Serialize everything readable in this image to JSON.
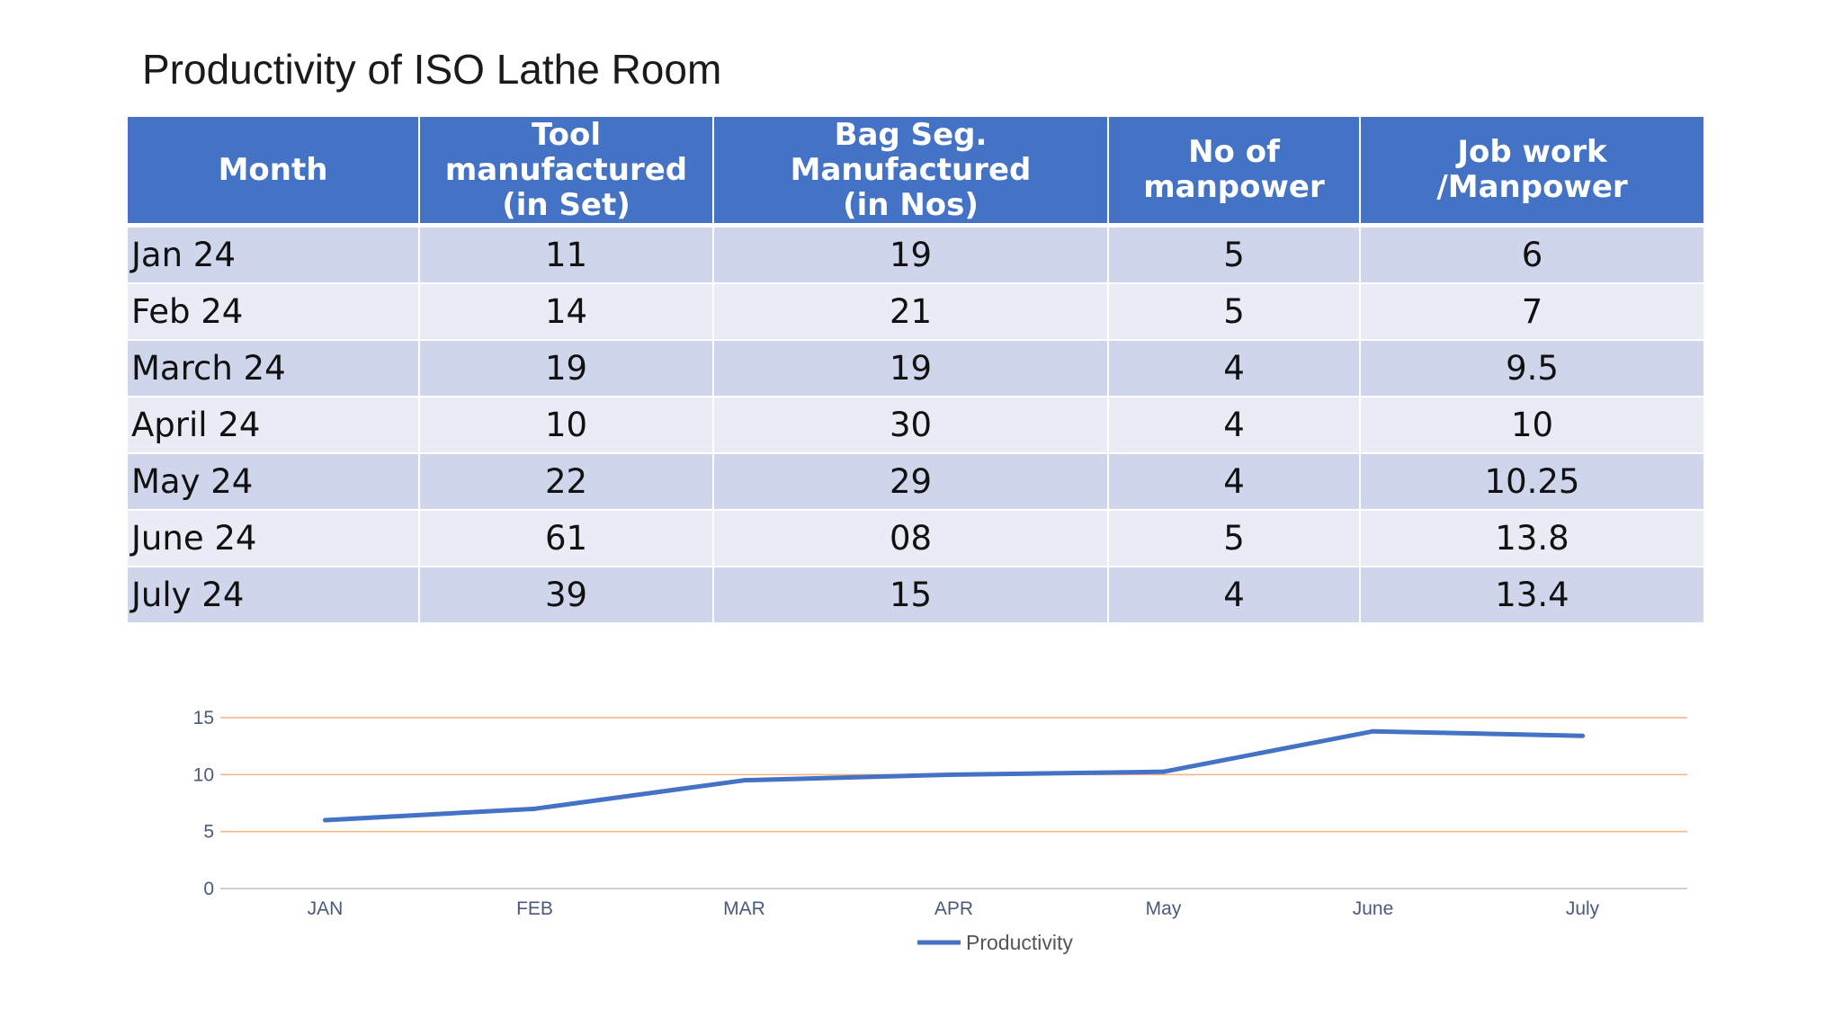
{
  "slide": {
    "title": "Productivity of ISO Lathe Room"
  },
  "table": {
    "headers": [
      [
        "Month"
      ],
      [
        "Tool manufactured",
        "(in Set)"
      ],
      [
        "Bag Seg. Manufactured",
        "(in Nos)"
      ],
      [
        "No of",
        "manpower"
      ],
      [
        "Job work /Manpower"
      ]
    ],
    "rows": [
      [
        "Jan 24",
        "11",
        "19",
        "5",
        "6"
      ],
      [
        "Feb 24",
        "14",
        "21",
        "5",
        "7"
      ],
      [
        "March 24",
        "19",
        "19",
        "4",
        "9.5"
      ],
      [
        "April 24",
        "10",
        "30",
        "4",
        "10"
      ],
      [
        "May 24",
        "22",
        "29",
        "4",
        "10.25"
      ],
      [
        "June 24",
        "61",
        "08",
        "5",
        "13.8"
      ],
      [
        "July 24",
        "39",
        "15",
        "4",
        "13.4"
      ]
    ],
    "colors": {
      "header_bg": "#4472c4",
      "row_odd": "#cfd5ea",
      "row_even": "#e9ebf5"
    }
  },
  "chart_data": {
    "type": "line",
    "categories": [
      "JAN",
      "FEB",
      "MAR",
      "APR",
      "May",
      "June",
      "July"
    ],
    "series": [
      {
        "name": "Productivity",
        "values": [
          6,
          7,
          9.5,
          10,
          10.25,
          13.8,
          13.4
        ],
        "color": "#4472c4"
      }
    ],
    "yticks": [
      "0",
      "5",
      "10",
      "15"
    ],
    "ylim": [
      0,
      15
    ],
    "title": "",
    "xlabel": "",
    "ylabel": "",
    "grid": true,
    "grid_color": "#f4b183",
    "legend": "bottom"
  }
}
